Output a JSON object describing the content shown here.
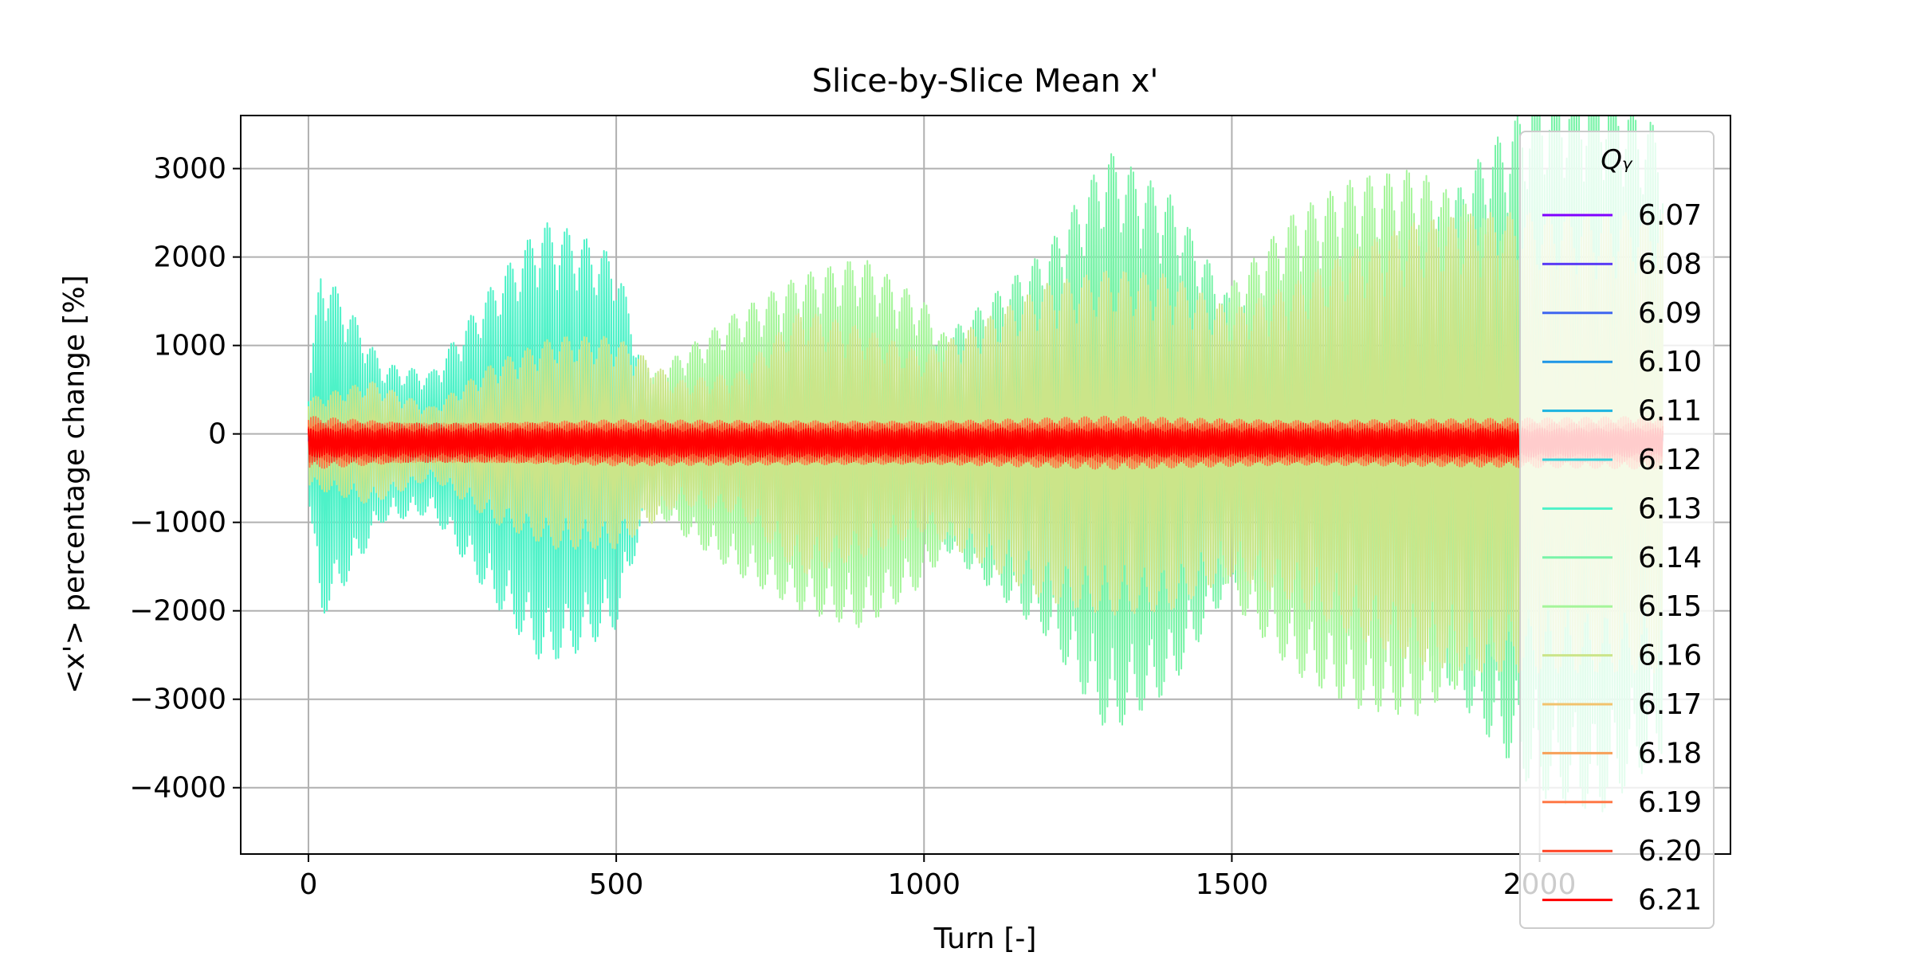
{
  "chart_data": {
    "type": "line",
    "title": "Slice-by-Slice Mean x'",
    "xlabel": "Turn [-]",
    "ylabel": "<x'> percentage change [%]",
    "xlim": [
      -110,
      2310
    ],
    "ylim": [
      -4750,
      3600
    ],
    "xticks": [
      0,
      500,
      1000,
      1500,
      2000
    ],
    "xtick_labels": [
      "0",
      "500",
      "1000",
      "1500",
      "2000"
    ],
    "yticks": [
      3000,
      2000,
      1000,
      0,
      -1000,
      -2000,
      -3000,
      -4000
    ],
    "ytick_labels": [
      "3000",
      "2000",
      "1000",
      "0",
      "−1000",
      "−2000",
      "−3000",
      "−4000"
    ],
    "grid": true,
    "legend": {
      "title": "Qᵧ",
      "placement": "upper-right"
    },
    "series": [
      {
        "name": "6.07",
        "color": "#8000ff",
        "envelope": [
          [
            0,
            60
          ],
          [
            2200,
            60
          ]
        ]
      },
      {
        "name": "6.08",
        "color": "#5a3cf5",
        "envelope": [
          [
            0,
            70
          ],
          [
            2200,
            70
          ]
        ]
      },
      {
        "name": "6.09",
        "color": "#3f66f0",
        "envelope": [
          [
            0,
            80
          ],
          [
            2200,
            80
          ]
        ]
      },
      {
        "name": "6.10",
        "color": "#1d96e6",
        "envelope": [
          [
            0,
            100
          ],
          [
            20,
            400
          ],
          [
            60,
            120
          ],
          [
            300,
            150
          ],
          [
            330,
            350
          ],
          [
            350,
            450
          ],
          [
            380,
            500
          ],
          [
            420,
            600
          ],
          [
            460,
            550
          ],
          [
            480,
            120
          ],
          [
            2200,
            100
          ]
        ]
      },
      {
        "name": "6.11",
        "color": "#1ab4e0",
        "envelope": [
          [
            0,
            80
          ],
          [
            2200,
            80
          ]
        ]
      },
      {
        "name": "6.12",
        "color": "#33cfd8",
        "envelope": [
          [
            0,
            80
          ],
          [
            2200,
            80
          ]
        ]
      },
      {
        "name": "6.13",
        "color": "#4ef2c8",
        "envelope": [
          [
            0,
            600
          ],
          [
            20,
            2000
          ],
          [
            60,
            1600
          ],
          [
            120,
            900
          ],
          [
            200,
            800
          ],
          [
            300,
            1800
          ],
          [
            380,
            2500
          ],
          [
            430,
            2400
          ],
          [
            500,
            2100
          ],
          [
            540,
            1000
          ],
          [
            600,
            300
          ],
          [
            2200,
            300
          ]
        ]
      },
      {
        "name": "6.14",
        "color": "#79f3a8",
        "envelope": [
          [
            0,
            300
          ],
          [
            600,
            300
          ],
          [
            800,
            800
          ],
          [
            1000,
            1000
          ],
          [
            1200,
            2200
          ],
          [
            1300,
            3300
          ],
          [
            1400,
            2800
          ],
          [
            1500,
            1600
          ],
          [
            1650,
            1600
          ],
          [
            1800,
            2200
          ],
          [
            1900,
            3200
          ],
          [
            2000,
            4000
          ],
          [
            2100,
            4200
          ],
          [
            2200,
            3500
          ]
        ]
      },
      {
        "name": "6.15",
        "color": "#a5f59a",
        "envelope": [
          [
            0,
            200
          ],
          [
            500,
            400
          ],
          [
            600,
            1000
          ],
          [
            700,
            1500
          ],
          [
            800,
            1900
          ],
          [
            900,
            2100
          ],
          [
            1000,
            1600
          ],
          [
            1100,
            500
          ],
          [
            1300,
            200
          ],
          [
            1450,
            800
          ],
          [
            1500,
            1800
          ],
          [
            1600,
            2600
          ],
          [
            1700,
            3000
          ],
          [
            1800,
            3100
          ],
          [
            1900,
            2600
          ],
          [
            2000,
            2000
          ],
          [
            2200,
            1800
          ]
        ]
      },
      {
        "name": "6.16",
        "color": "#cbe589",
        "envelope": [
          [
            0,
            500
          ],
          [
            100,
            700
          ],
          [
            200,
            400
          ],
          [
            300,
            900
          ],
          [
            400,
            1200
          ],
          [
            500,
            1200
          ],
          [
            600,
            700
          ],
          [
            700,
            800
          ],
          [
            800,
            1500
          ],
          [
            900,
            1300
          ],
          [
            1000,
            1000
          ],
          [
            1100,
            1400
          ],
          [
            1200,
            1800
          ],
          [
            1300,
            1950
          ],
          [
            1400,
            1900
          ],
          [
            1500,
            1500
          ],
          [
            1600,
            1800
          ],
          [
            1700,
            2200
          ],
          [
            1800,
            2500
          ],
          [
            1900,
            2600
          ],
          [
            2000,
            2600
          ],
          [
            2200,
            2600
          ]
        ]
      },
      {
        "name": "6.17",
        "color": "#f2c36d",
        "envelope": [
          [
            0,
            180
          ],
          [
            2200,
            180
          ]
        ]
      },
      {
        "name": "6.18",
        "color": "#f7a058",
        "envelope": [
          [
            0,
            220
          ],
          [
            2200,
            220
          ]
        ]
      },
      {
        "name": "6.19",
        "color": "#ff7846",
        "envelope": [
          [
            0,
            300
          ],
          [
            200,
            200
          ],
          [
            500,
            260
          ],
          [
            1000,
            240
          ],
          [
            1300,
            300
          ],
          [
            1600,
            250
          ],
          [
            2000,
            280
          ],
          [
            2200,
            300
          ]
        ]
      },
      {
        "name": "6.20",
        "color": "#ff4224",
        "envelope": [
          [
            0,
            220
          ],
          [
            2200,
            220
          ]
        ]
      },
      {
        "name": "6.21",
        "color": "#ff0000",
        "envelope": [
          [
            0,
            160
          ],
          [
            2200,
            160
          ]
        ]
      }
    ]
  }
}
